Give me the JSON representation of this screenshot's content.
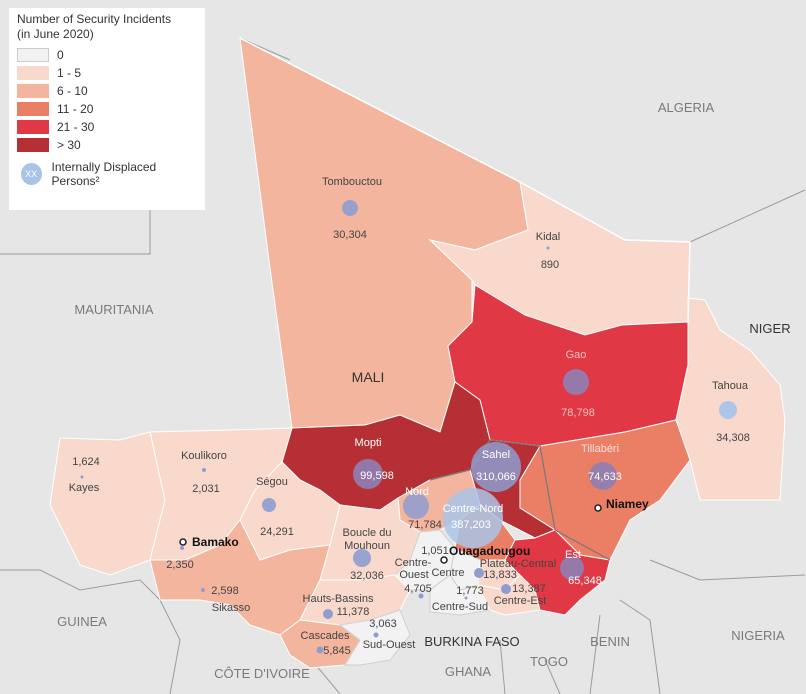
{
  "legend": {
    "title_line1": "Number of Security Incidents",
    "title_line2": "(in June 2020)",
    "classes": [
      {
        "label": "0",
        "color": "#f2f2f2"
      },
      {
        "label": "1 - 5",
        "color": "#f9d9cc"
      },
      {
        "label": "6 - 10",
        "color": "#f4b59e"
      },
      {
        "label": "11 - 20",
        "color": "#ea7f66"
      },
      {
        "label": "21 - 30",
        "color": "#e03844"
      },
      {
        "label": "> 30",
        "color": "#b52f34"
      }
    ],
    "idp_symbol_text": "XX",
    "idp_label": "Internally Displaced Persons²"
  },
  "countries": {
    "algeria": "ALGERIA",
    "mauritania": "MAURITANIA",
    "mali": "MALI",
    "niger": "NIGER",
    "burkina_faso": "BURKINA FASO",
    "guinea": "GUINEA",
    "cote_divoire": "CÔTE D'IVOIRE",
    "ghana": "GHANA",
    "togo": "TOGO",
    "benin": "BENIN",
    "nigeria": "NIGERIA"
  },
  "capitals": {
    "bamako": "Bamako",
    "niamey": "Niamey",
    "ouagadougou": "Ouagadougou"
  },
  "regions": {
    "tombouctou": {
      "name": "Tombouctou",
      "idp": "30,304"
    },
    "kidal": {
      "name": "Kidal",
      "idp": "890"
    },
    "gao": {
      "name": "Gao",
      "idp": "78,798"
    },
    "mopti": {
      "name": "Mopti",
      "idp": "99,598"
    },
    "kayes": {
      "name": "Kayes",
      "idp": "1,624"
    },
    "koulikoro": {
      "name": "Koulikoro",
      "idp": "2,031"
    },
    "segou": {
      "name": "Ségou",
      "idp": "24,291"
    },
    "bamako_d": {
      "idp": "2,350"
    },
    "sikasso": {
      "name": "Sikasso",
      "idp": "2,598"
    },
    "tahoua": {
      "name": "Tahoua",
      "idp": "34,308"
    },
    "tillaberi": {
      "name": "Tillabéri",
      "idp": "74,633"
    },
    "sahel": {
      "name": "Sahel",
      "idp": "310,066"
    },
    "nord": {
      "name": "Nord",
      "idp": "71,784"
    },
    "centre_nord": {
      "name": "Centre-Nord",
      "idp": "387,203"
    },
    "boucle": {
      "name_line1": "Boucle du",
      "name_line2": "Mouhoun",
      "idp": "32,036"
    },
    "centre": {
      "name": "Centre",
      "idp": "1,051"
    },
    "centre_ouest": {
      "name_line1": "Centre-",
      "name_line2": "Ouest",
      "idp": "4,705"
    },
    "plateau": {
      "name": "Plateau-Central",
      "idp": "13,833"
    },
    "est": {
      "name": "Est",
      "idp": "65,348"
    },
    "centre_est": {
      "name": "Centre-Est",
      "idp": "13,387"
    },
    "centre_sud": {
      "name": "Centre-Sud",
      "idp": "1,773"
    },
    "hauts_bassins": {
      "name": "Hauts-Bassins",
      "idp": "11,378"
    },
    "cascades": {
      "name": "Cascades",
      "idp": "5,845"
    },
    "sud_ouest": {
      "name": "Sud-Ouest",
      "idp": "3,063"
    }
  }
}
